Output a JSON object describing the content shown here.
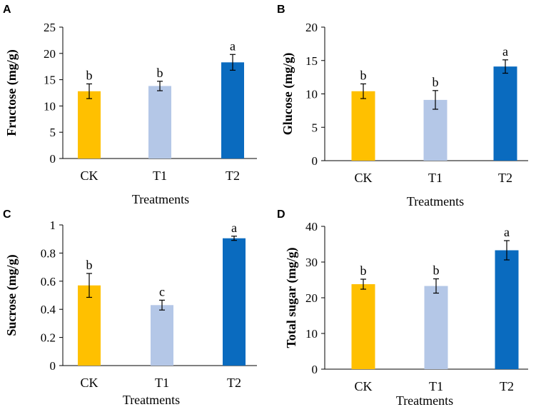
{
  "chart_data": [
    {
      "type": "bar",
      "panel": "A",
      "categories": [
        "CK",
        "T1",
        "T2"
      ],
      "values": [
        12.8,
        13.8,
        18.3
      ],
      "errors": [
        1.4,
        0.9,
        1.5
      ],
      "letters": [
        "b",
        "b",
        "a"
      ],
      "colors": [
        "#FFC000",
        "#B4C7E7",
        "#0A6BBF"
      ],
      "ylabel": "Fructose (mg/g)",
      "xlabel": "Treatments",
      "ylim": [
        0,
        25
      ],
      "yticks": [
        0,
        5,
        10,
        15,
        20,
        25
      ],
      "ytick_labels": [
        "0",
        "5",
        "10",
        "15",
        "20",
        "25"
      ]
    },
    {
      "type": "bar",
      "panel": "B",
      "categories": [
        "CK",
        "T1",
        "T2"
      ],
      "values": [
        10.4,
        9.1,
        14.1
      ],
      "errors": [
        1.1,
        1.4,
        1.0
      ],
      "letters": [
        "b",
        "b",
        "a"
      ],
      "colors": [
        "#FFC000",
        "#B4C7E7",
        "#0A6BBF"
      ],
      "ylabel": "Glucose (mg/g)",
      "xlabel": "Treatments",
      "ylim": [
        0,
        20
      ],
      "yticks": [
        0,
        5,
        10,
        15,
        20
      ],
      "ytick_labels": [
        "0",
        "5",
        "10",
        "15",
        "20"
      ]
    },
    {
      "type": "bar",
      "panel": "C",
      "categories": [
        "CK",
        "T1",
        "T2"
      ],
      "values": [
        0.57,
        0.43,
        0.905
      ],
      "errors": [
        0.085,
        0.035,
        0.015
      ],
      "letters": [
        "b",
        "c",
        "a"
      ],
      "colors": [
        "#FFC000",
        "#B4C7E7",
        "#0A6BBF"
      ],
      "ylabel": "Sucrose (mg/g)",
      "xlabel": "Treatments",
      "ylim": [
        0,
        1
      ],
      "yticks": [
        0,
        0.2,
        0.4,
        0.6,
        0.8,
        1
      ],
      "ytick_labels": [
        "0",
        "0.2",
        "0.4",
        "0.6",
        "0.8",
        "1"
      ]
    },
    {
      "type": "bar",
      "panel": "D",
      "categories": [
        "CK",
        "T1",
        "T2"
      ],
      "values": [
        23.8,
        23.3,
        33.3
      ],
      "errors": [
        1.4,
        2.0,
        2.7
      ],
      "letters": [
        "b",
        "b",
        "a"
      ],
      "colors": [
        "#FFC000",
        "#B4C7E7",
        "#0A6BBF"
      ],
      "ylabel": "Total sugar (mg/g)",
      "xlabel": "Treatments",
      "ylim": [
        0,
        40
      ],
      "yticks": [
        0,
        10,
        20,
        30,
        40
      ],
      "ytick_labels": [
        "0",
        "10",
        "20",
        "30",
        "40"
      ]
    }
  ]
}
